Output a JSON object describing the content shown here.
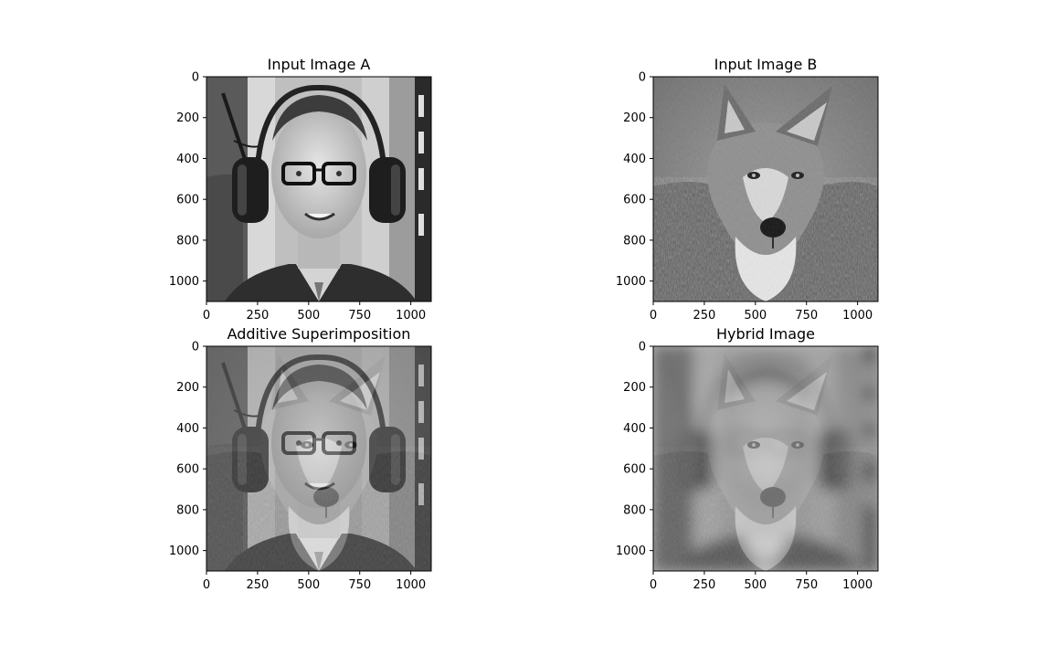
{
  "chart_data": [
    {
      "type": "image",
      "title": "Input Image A",
      "xticks": [
        "0",
        "250",
        "500",
        "750",
        "1000"
      ],
      "yticks": [
        "0",
        "200",
        "400",
        "600",
        "800",
        "1000"
      ],
      "xlim": [
        0,
        1100
      ],
      "ylim": [
        1100,
        0
      ],
      "content": "man-with-headphones-grayscale"
    },
    {
      "type": "image",
      "title": "Input Image B",
      "xticks": [
        "0",
        "250",
        "500",
        "750",
        "1000"
      ],
      "yticks": [
        "0",
        "200",
        "400",
        "600",
        "800",
        "1000"
      ],
      "xlim": [
        0,
        1100
      ],
      "ylim": [
        1100,
        0
      ],
      "content": "wolf-grayscale"
    },
    {
      "type": "image",
      "title": "Additive Superimposition",
      "xticks": [
        "0",
        "250",
        "500",
        "750",
        "1000"
      ],
      "yticks": [
        "0",
        "200",
        "400",
        "600",
        "800",
        "1000"
      ],
      "xlim": [
        0,
        1100
      ],
      "ylim": [
        1100,
        0
      ],
      "content": "man-plus-wolf-overlay"
    },
    {
      "type": "image",
      "title": "Hybrid Image",
      "xticks": [
        "0",
        "250",
        "500",
        "750",
        "1000"
      ],
      "yticks": [
        "0",
        "200",
        "400",
        "600",
        "800",
        "1000"
      ],
      "xlim": [
        0,
        1100
      ],
      "ylim": [
        1100,
        0
      ],
      "content": "hybrid-blurred-man-sharp-wolf"
    }
  ]
}
